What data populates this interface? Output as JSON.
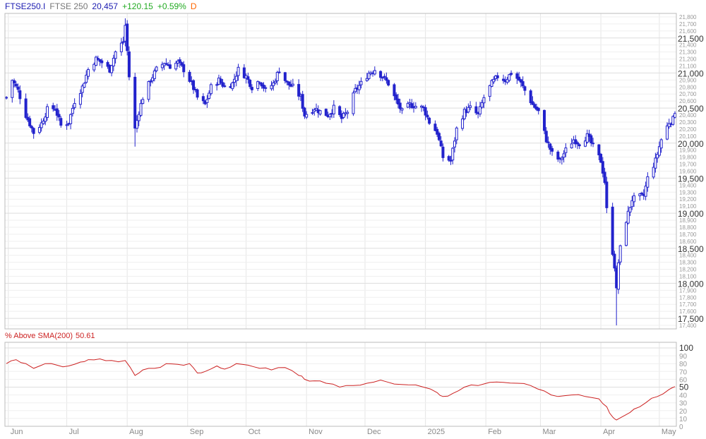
{
  "header": {
    "symbol": "FTSE250.I",
    "name": "FTSE 250",
    "last": "20,457",
    "change": "+120.15",
    "change_pct": "+0.59%",
    "period": "D"
  },
  "colors": {
    "candles": "#2222cc",
    "header_symbol": "#1a1ab0",
    "header_name": "#777777",
    "up": "#22aa22",
    "period": "#ff6600",
    "indicator": "#cc2222",
    "grid": "#e6e6e6",
    "axis_text": "#888888"
  },
  "indicator": {
    "label": "% Above SMA(200)",
    "value": "50.61"
  },
  "chart_data": [
    {
      "type": "candlestick",
      "x_axis": {
        "type": "date",
        "start": "2024-05-31",
        "end": "2025-05-09",
        "labels": [
          "Jun",
          "Jul",
          "Aug",
          "Sep",
          "Oct",
          "Nov",
          "Dec",
          "2025",
          "Feb",
          "Mar",
          "Apr",
          "May"
        ]
      },
      "y_axis": {
        "side": "right",
        "ylim": [
          17350,
          21850
        ],
        "major_ticks": [
          17500,
          18000,
          18500,
          19000,
          19500,
          20000,
          20500,
          21000,
          21500
        ],
        "major_labels": [
          "17,500",
          "18,000",
          "18,500",
          "19,000",
          "19,500",
          "20,000",
          "20,500",
          "21,000",
          "21,500"
        ],
        "minor_labels": [
          "17,400",
          "17,600",
          "17,700",
          "17,800",
          "17,900",
          "18,100",
          "18,200",
          "18,300",
          "18,400",
          "18,600",
          "18,700",
          "18,800",
          "18,900",
          "19,100",
          "19,200",
          "19,300",
          "19,400",
          "19,600",
          "19,700",
          "19,800",
          "19,900",
          "20,100",
          "20,200",
          "20,300",
          "20,400",
          "20,600",
          "20,700",
          "20,800",
          "20,900",
          "21,100",
          "21,200",
          "21,300",
          "21,400",
          "21,600",
          "21,700",
          "21,800"
        ]
      },
      "close_path": [
        [
          "2024-05-31",
          20650
        ],
        [
          "2024-06-03",
          20900
        ],
        [
          "2024-06-06",
          20750
        ],
        [
          "2024-06-10",
          20400
        ],
        [
          "2024-06-14",
          20150
        ],
        [
          "2024-06-18",
          20280
        ],
        [
          "2024-06-21",
          20480
        ],
        [
          "2024-06-25",
          20500
        ],
        [
          "2024-06-28",
          20250
        ],
        [
          "2024-07-02",
          20300
        ],
        [
          "2024-07-05",
          20600
        ],
        [
          "2024-07-09",
          20800
        ],
        [
          "2024-07-12",
          21050
        ],
        [
          "2024-07-16",
          21200
        ],
        [
          "2024-07-19",
          21150
        ],
        [
          "2024-07-23",
          21050
        ],
        [
          "2024-07-26",
          21300
        ],
        [
          "2024-07-30",
          21450
        ],
        [
          "2024-07-31",
          21680
        ],
        [
          "2024-08-02",
          20950
        ],
        [
          "2024-08-05",
          20200
        ],
        [
          "2024-08-07",
          20450
        ],
        [
          "2024-08-09",
          20650
        ],
        [
          "2024-08-13",
          20900
        ],
        [
          "2024-08-16",
          21050
        ],
        [
          "2024-08-20",
          21150
        ],
        [
          "2024-08-23",
          21100
        ],
        [
          "2024-08-27",
          21150
        ],
        [
          "2024-08-30",
          21050
        ],
        [
          "2024-09-03",
          20850
        ],
        [
          "2024-09-06",
          20650
        ],
        [
          "2024-09-10",
          20550
        ],
        [
          "2024-09-13",
          20800
        ],
        [
          "2024-09-17",
          20900
        ],
        [
          "2024-09-20",
          20800
        ],
        [
          "2024-09-24",
          20850
        ],
        [
          "2024-09-27",
          21050
        ],
        [
          "2024-10-01",
          20950
        ],
        [
          "2024-10-04",
          20800
        ],
        [
          "2024-10-08",
          20900
        ],
        [
          "2024-10-11",
          20750
        ],
        [
          "2024-10-15",
          20850
        ],
        [
          "2024-10-18",
          21050
        ],
        [
          "2024-10-22",
          20850
        ],
        [
          "2024-10-25",
          20800
        ],
        [
          "2024-10-29",
          20650
        ],
        [
          "2024-10-31",
          20400
        ],
        [
          "2024-11-05",
          20500
        ],
        [
          "2024-11-08",
          20450
        ],
        [
          "2024-11-12",
          20400
        ],
        [
          "2024-11-15",
          20500
        ],
        [
          "2024-11-19",
          20350
        ],
        [
          "2024-11-22",
          20450
        ],
        [
          "2024-11-26",
          20750
        ],
        [
          "2024-11-29",
          20850
        ],
        [
          "2024-12-03",
          21000
        ],
        [
          "2024-12-06",
          21050
        ],
        [
          "2024-12-10",
          20950
        ],
        [
          "2024-12-13",
          20850
        ],
        [
          "2024-12-17",
          20600
        ],
        [
          "2024-12-20",
          20450
        ],
        [
          "2024-12-24",
          20550
        ],
        [
          "2024-12-31",
          20500
        ],
        [
          "2025-01-03",
          20300
        ],
        [
          "2025-01-07",
          20150
        ],
        [
          "2025-01-10",
          19800
        ],
        [
          "2025-01-14",
          19750
        ],
        [
          "2025-01-17",
          20200
        ],
        [
          "2025-01-21",
          20450
        ],
        [
          "2025-01-24",
          20500
        ],
        [
          "2025-01-28",
          20400
        ],
        [
          "2025-01-31",
          20650
        ],
        [
          "2025-02-04",
          20850
        ],
        [
          "2025-02-07",
          20950
        ],
        [
          "2025-02-11",
          20900
        ],
        [
          "2025-02-14",
          21000
        ],
        [
          "2025-02-18",
          20900
        ],
        [
          "2025-02-21",
          20750
        ],
        [
          "2025-02-25",
          20550
        ],
        [
          "2025-02-28",
          20450
        ],
        [
          "2025-03-04",
          20050
        ],
        [
          "2025-03-07",
          19850
        ],
        [
          "2025-03-11",
          19750
        ],
        [
          "2025-03-14",
          19900
        ],
        [
          "2025-03-18",
          20050
        ],
        [
          "2025-03-21",
          20000
        ],
        [
          "2025-03-25",
          20100
        ],
        [
          "2025-03-28",
          19950
        ],
        [
          "2025-04-01",
          19750
        ],
        [
          "2025-04-03",
          19450
        ],
        [
          "2025-04-04",
          19050
        ],
        [
          "2025-04-07",
          18450
        ],
        [
          "2025-04-08",
          18250
        ],
        [
          "2025-04-09",
          17900
        ],
        [
          "2025-04-10",
          18300
        ],
        [
          "2025-04-11",
          18500
        ],
        [
          "2025-04-14",
          18900
        ],
        [
          "2025-04-17",
          19200
        ],
        [
          "2025-04-23",
          19250
        ],
        [
          "2025-04-25",
          19500
        ],
        [
          "2025-04-29",
          19750
        ],
        [
          "2025-05-02",
          20050
        ],
        [
          "2025-05-06",
          20300
        ],
        [
          "2025-05-08",
          20337
        ],
        [
          "2025-05-09",
          20457
        ]
      ],
      "notable_lows": [
        [
          "2024-08-05",
          19950
        ],
        [
          "2025-04-09",
          17400
        ]
      ],
      "notable_highs": [
        [
          "2024-07-31",
          21780
        ]
      ]
    },
    {
      "type": "line",
      "series": [
        {
          "name": "% Above SMA(200)",
          "points": [
            [
              "2024-05-31",
              80
            ],
            [
              "2024-06-05",
              85
            ],
            [
              "2024-06-10",
              80
            ],
            [
              "2024-06-14",
              74
            ],
            [
              "2024-06-20",
              80
            ],
            [
              "2024-06-26",
              78
            ],
            [
              "2024-07-02",
              77
            ],
            [
              "2024-07-08",
              82
            ],
            [
              "2024-07-12",
              85
            ],
            [
              "2024-07-18",
              86
            ],
            [
              "2024-07-24",
              84
            ],
            [
              "2024-07-31",
              84
            ],
            [
              "2024-08-05",
              65
            ],
            [
              "2024-08-09",
              72
            ],
            [
              "2024-08-15",
              74
            ],
            [
              "2024-08-21",
              80
            ],
            [
              "2024-08-27",
              79
            ],
            [
              "2024-09-02",
              80
            ],
            [
              "2024-09-06",
              68
            ],
            [
              "2024-09-10",
              70
            ],
            [
              "2024-09-16",
              77
            ],
            [
              "2024-09-20",
              73
            ],
            [
              "2024-09-26",
              80
            ],
            [
              "2024-10-02",
              78
            ],
            [
              "2024-10-08",
              74
            ],
            [
              "2024-10-14",
              72
            ],
            [
              "2024-10-21",
              75
            ],
            [
              "2024-10-28",
              65
            ],
            [
              "2024-10-31",
              60
            ],
            [
              "2024-11-05",
              58
            ],
            [
              "2024-11-11",
              55
            ],
            [
              "2024-11-18",
              50
            ],
            [
              "2024-11-25",
              52
            ],
            [
              "2024-12-02",
              55
            ],
            [
              "2024-12-09",
              59
            ],
            [
              "2024-12-16",
              54
            ],
            [
              "2024-12-23",
              53
            ],
            [
              "2024-12-31",
              50
            ],
            [
              "2025-01-07",
              43
            ],
            [
              "2025-01-10",
              38
            ],
            [
              "2025-01-15",
              42
            ],
            [
              "2025-01-21",
              50
            ],
            [
              "2025-01-28",
              52
            ],
            [
              "2025-02-03",
              56
            ],
            [
              "2025-02-10",
              56
            ],
            [
              "2025-02-17",
              55
            ],
            [
              "2025-02-24",
              52
            ],
            [
              "2025-03-03",
              45
            ],
            [
              "2025-03-10",
              38
            ],
            [
              "2025-03-17",
              40
            ],
            [
              "2025-03-24",
              38
            ],
            [
              "2025-03-31",
              35
            ],
            [
              "2025-04-04",
              25
            ],
            [
              "2025-04-07",
              12
            ],
            [
              "2025-04-09",
              8
            ],
            [
              "2025-04-14",
              15
            ],
            [
              "2025-04-18",
              22
            ],
            [
              "2025-04-24",
              30
            ],
            [
              "2025-04-30",
              38
            ],
            [
              "2025-05-06",
              47
            ],
            [
              "2025-05-09",
              50.61
            ]
          ]
        }
      ],
      "y_axis": {
        "side": "right",
        "ylim": [
          0,
          100
        ],
        "ticks": [
          0,
          10,
          20,
          30,
          40,
          50,
          60,
          70,
          80,
          90,
          100
        ],
        "major_ticks": [
          50,
          100
        ]
      }
    }
  ]
}
